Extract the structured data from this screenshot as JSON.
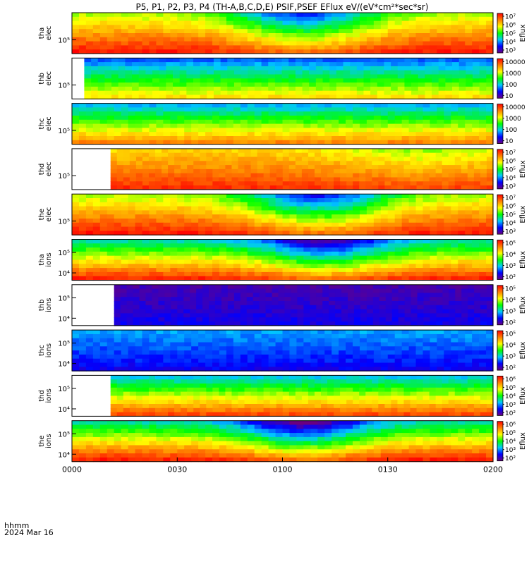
{
  "chart_data": {
    "type": "heatmap",
    "title": "P5, P1, P2, P3, P4 (TH-A,B,C,D,E) PSIF,PSEF EFlux eV/(eV*cm²*sec*sr)",
    "colorbar_label": "Eflux",
    "x": {
      "ticks": [
        "0000",
        "0030",
        "0100",
        "0130",
        "0200"
      ],
      "range_minutes": [
        0,
        120
      ],
      "time_label": "hhmm",
      "date_label": "2024 Mar 16"
    },
    "colormap": [
      "#6a0080",
      "#0000ff",
      "#00c8ff",
      "#00ff00",
      "#ffff00",
      "#ff8000",
      "#ff0000"
    ],
    "panels": [
      {
        "id": "tha-elec",
        "ylabel": [
          "tha",
          "elec"
        ],
        "yticks": [
          "10⁵"
        ],
        "cbar_ticks": [
          "10⁷",
          "10⁶",
          "10⁵",
          "10⁴",
          "10³"
        ],
        "cbar_label": "Eflux",
        "data_start_min": 0,
        "data_end_min": 120,
        "level_high": 0.97,
        "level_low": 0.62,
        "dip": 0.42,
        "dip_center_min": 66,
        "dip_width_min": 20
      },
      {
        "id": "thb-elec",
        "ylabel": [
          "thb",
          "elec"
        ],
        "yticks": [
          "10⁵"
        ],
        "cbar_ticks": [
          "10000",
          "1000",
          "100",
          "10"
        ],
        "cbar_label": "",
        "data_start_min": 3.5,
        "data_end_min": 120,
        "level_high": 0.7,
        "level_low": 0.25,
        "dip": 0.0,
        "dip_center_min": 60,
        "dip_width_min": 20
      },
      {
        "id": "thc-elec",
        "ylabel": [
          "thc",
          "elec"
        ],
        "yticks": [
          "10⁵"
        ],
        "cbar_ticks": [
          "10000",
          "1000",
          "100",
          "10"
        ],
        "cbar_label": "",
        "data_start_min": 0,
        "data_end_min": 120,
        "level_high": 0.82,
        "level_low": 0.32,
        "dip": 0.0,
        "dip_center_min": 60,
        "dip_width_min": 20
      },
      {
        "id": "thd-elec",
        "ylabel": [
          "thd",
          "elec"
        ],
        "yticks": [
          "10⁵"
        ],
        "cbar_ticks": [
          "10⁷",
          "10⁶",
          "10⁵",
          "10⁴",
          "10³"
        ],
        "cbar_label": "Eflux",
        "data_start_min": 11,
        "data_end_min": 120,
        "level_high": 0.94,
        "level_low": 0.72,
        "dip": 0.12,
        "dip_center_min": 100,
        "dip_width_min": 25
      },
      {
        "id": "the-elec",
        "ylabel": [
          "the",
          "elec"
        ],
        "yticks": [
          "10⁵"
        ],
        "cbar_ticks": [
          "10⁷",
          "10⁶",
          "10⁵",
          "10⁴",
          "10³"
        ],
        "cbar_label": "Eflux",
        "data_start_min": 0,
        "data_end_min": 120,
        "level_high": 0.97,
        "level_low": 0.62,
        "dip": 0.45,
        "dip_center_min": 70,
        "dip_width_min": 20
      },
      {
        "id": "tha-ions",
        "ylabel": [
          "tha",
          "ions"
        ],
        "yticks": [
          "10⁵",
          "10⁴"
        ],
        "cbar_ticks": [
          "10⁵",
          "10⁴",
          "10³",
          "10²"
        ],
        "cbar_label": "Eflux",
        "data_start_min": 0,
        "data_end_min": 120,
        "level_high": 0.95,
        "level_low": 0.4,
        "dip": 0.35,
        "dip_center_min": 72,
        "dip_width_min": 18
      },
      {
        "id": "thb-ions",
        "ylabel": [
          "thb",
          "ions"
        ],
        "yticks": [
          "10⁵",
          "10⁴"
        ],
        "cbar_ticks": [
          "10⁵",
          "10⁴",
          "10³",
          "10²"
        ],
        "cbar_label": "Eflux",
        "data_start_min": 12,
        "data_end_min": 120,
        "level_high": 0.14,
        "level_low": 0.06,
        "dip": 0.0,
        "dip_center_min": 60,
        "dip_width_min": 20
      },
      {
        "id": "thc-ions",
        "ylabel": [
          "thc",
          "ions"
        ],
        "yticks": [
          "10⁵",
          "10⁴"
        ],
        "cbar_ticks": [
          "10⁵",
          "10⁴",
          "10³",
          "10²"
        ],
        "cbar_label": "Eflux",
        "data_start_min": 0,
        "data_end_min": 120,
        "level_high": 0.15,
        "level_low": 0.3,
        "dip": 0.0,
        "dip_center_min": 60,
        "dip_width_min": 20
      },
      {
        "id": "thd-ions",
        "ylabel": [
          "thd",
          "ions"
        ],
        "yticks": [
          "10⁵",
          "10⁴"
        ],
        "cbar_ticks": [
          "10⁶",
          "10⁵",
          "10⁴",
          "10³",
          "10²"
        ],
        "cbar_label": "Eflux",
        "data_start_min": 11,
        "data_end_min": 120,
        "level_high": 0.9,
        "level_low": 0.35,
        "dip": 0.0,
        "dip_center_min": 60,
        "dip_width_min": 20
      },
      {
        "id": "the-ions",
        "ylabel": [
          "the",
          "ions"
        ],
        "yticks": [
          "10⁵",
          "10⁴"
        ],
        "cbar_ticks": [
          "10⁶",
          "10⁵",
          "10⁴",
          "10³",
          "10²"
        ],
        "cbar_label": "Eflux",
        "data_start_min": 0,
        "data_end_min": 120,
        "level_high": 0.96,
        "level_low": 0.4,
        "dip": 0.4,
        "dip_center_min": 66,
        "dip_width_min": 18
      }
    ]
  }
}
